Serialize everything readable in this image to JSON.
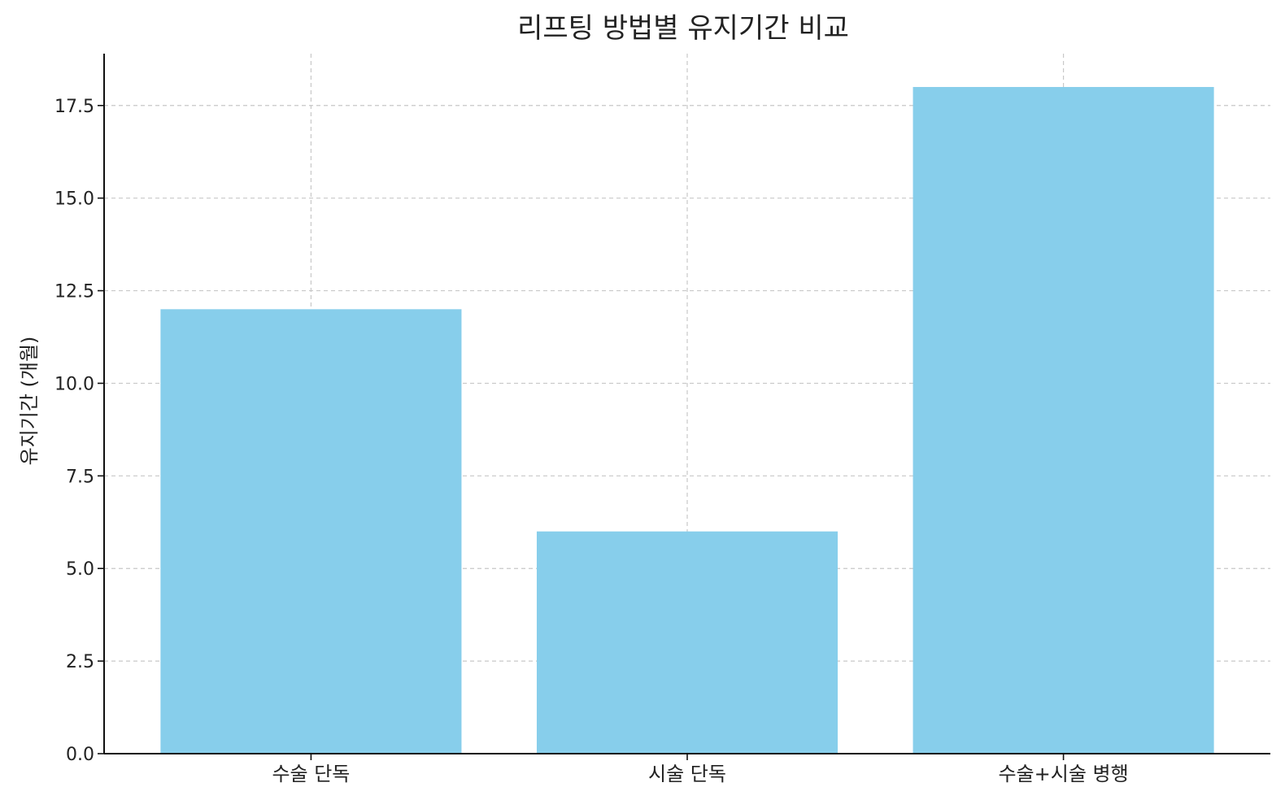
{
  "chart_data": {
    "type": "bar",
    "title": "리프팅 방법별 유지기간 비교",
    "xlabel": "",
    "ylabel": "유지기간 (개월)",
    "categories": [
      "수술 단독",
      "시술 단독",
      "수술+시술 병행"
    ],
    "values": [
      12,
      6,
      18
    ],
    "ylim": [
      0,
      18.9
    ],
    "yticks": [
      0.0,
      2.5,
      5.0,
      7.5,
      10.0,
      12.5,
      15.0,
      17.5
    ],
    "ytick_labels": [
      "0.0",
      "2.5",
      "5.0",
      "7.5",
      "10.0",
      "12.5",
      "15.0",
      "17.5"
    ],
    "bar_color": "#87CEEB",
    "grid": true,
    "legend": null
  }
}
